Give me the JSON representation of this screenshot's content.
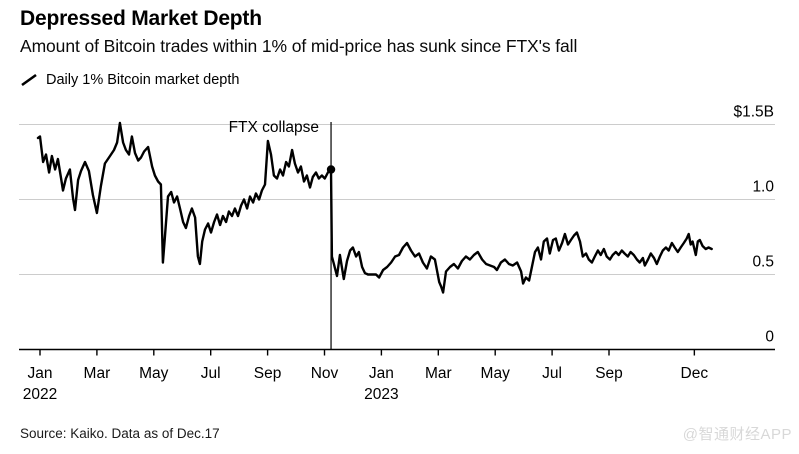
{
  "header": {
    "title": "Depressed Market Depth",
    "subtitle": "Amount of Bitcoin trades within 1% of mid-price has sunk since FTX's fall"
  },
  "legend": {
    "label": "Daily 1% Bitcoin market depth",
    "line_color": "#000000"
  },
  "chart_data": {
    "type": "line",
    "title": "Depressed Market Depth",
    "subtitle": "Amount of Bitcoin trades within 1% of mid-price has sunk since FTX's fall",
    "unit": "USD billions",
    "ylim": [
      0,
      1.5
    ],
    "grid": "horizontal",
    "legend_position": "top-left",
    "colors": {
      "line": "#000000",
      "grid": "#cccccc",
      "axis": "#000000",
      "annotation": "#000000"
    },
    "y_ticks": [
      {
        "label": "$1.5B",
        "value": 1.5
      },
      {
        "label": "1.0",
        "value": 1.0
      },
      {
        "label": "0.5",
        "value": 0.5
      },
      {
        "label": "0",
        "value": 0.0
      }
    ],
    "x_ticks": [
      {
        "label": "Jan",
        "sub": "2022",
        "month": 0
      },
      {
        "label": "Mar",
        "sub": "",
        "month": 2
      },
      {
        "label": "May",
        "sub": "",
        "month": 4
      },
      {
        "label": "Jul",
        "sub": "",
        "month": 6
      },
      {
        "label": "Sep",
        "sub": "",
        "month": 8
      },
      {
        "label": "Nov",
        "sub": "",
        "month": 10
      },
      {
        "label": "Jan",
        "sub": "2023",
        "month": 12
      },
      {
        "label": "Mar",
        "sub": "",
        "month": 14
      },
      {
        "label": "May",
        "sub": "",
        "month": 16
      },
      {
        "label": "Jul",
        "sub": "",
        "month": 18
      },
      {
        "label": "Sep",
        "sub": "",
        "month": 20
      },
      {
        "label": "Dec",
        "sub": "",
        "month": 23
      }
    ],
    "annotation": {
      "text": "FTX collapse",
      "month": 10.23,
      "value_at_line": 1.2
    },
    "marker": {
      "month": 10.23,
      "value": 1.2
    },
    "series": [
      {
        "name": "Daily 1% Bitcoin market depth",
        "color": "#000000",
        "x_unit": "months since Jan 2022",
        "points": [
          [
            -0.07,
            1.41
          ],
          [
            0.0,
            1.42
          ],
          [
            0.11,
            1.25
          ],
          [
            0.21,
            1.3
          ],
          [
            0.32,
            1.18
          ],
          [
            0.42,
            1.29
          ],
          [
            0.53,
            1.2
          ],
          [
            0.63,
            1.27
          ],
          [
            0.74,
            1.14
          ],
          [
            0.81,
            1.06
          ],
          [
            0.91,
            1.14
          ],
          [
            1.05,
            1.2
          ],
          [
            1.16,
            1.01
          ],
          [
            1.23,
            0.93
          ],
          [
            1.34,
            1.13
          ],
          [
            1.44,
            1.19
          ],
          [
            1.58,
            1.25
          ],
          [
            1.72,
            1.19
          ],
          [
            1.86,
            1.03
          ],
          [
            2.0,
            0.91
          ],
          [
            2.14,
            1.09
          ],
          [
            2.28,
            1.24
          ],
          [
            2.46,
            1.29
          ],
          [
            2.6,
            1.33
          ],
          [
            2.71,
            1.38
          ],
          [
            2.81,
            1.51
          ],
          [
            2.92,
            1.38
          ],
          [
            3.02,
            1.33
          ],
          [
            3.13,
            1.3
          ],
          [
            3.23,
            1.42
          ],
          [
            3.34,
            1.31
          ],
          [
            3.45,
            1.26
          ],
          [
            3.55,
            1.28
          ],
          [
            3.66,
            1.32
          ],
          [
            3.8,
            1.35
          ],
          [
            3.94,
            1.22
          ],
          [
            4.04,
            1.16
          ],
          [
            4.15,
            1.12
          ],
          [
            4.25,
            1.1
          ],
          [
            4.32,
            0.58
          ],
          [
            4.39,
            0.75
          ],
          [
            4.5,
            1.02
          ],
          [
            4.61,
            1.05
          ],
          [
            4.71,
            0.98
          ],
          [
            4.82,
            1.02
          ],
          [
            4.92,
            0.94
          ],
          [
            5.03,
            0.85
          ],
          [
            5.13,
            0.81
          ],
          [
            5.24,
            0.89
          ],
          [
            5.34,
            0.94
          ],
          [
            5.45,
            0.88
          ],
          [
            5.55,
            0.62
          ],
          [
            5.62,
            0.57
          ],
          [
            5.7,
            0.72
          ],
          [
            5.8,
            0.8
          ],
          [
            5.91,
            0.84
          ],
          [
            6.01,
            0.78
          ],
          [
            6.12,
            0.85
          ],
          [
            6.22,
            0.9
          ],
          [
            6.33,
            0.83
          ],
          [
            6.43,
            0.89
          ],
          [
            6.54,
            0.85
          ],
          [
            6.64,
            0.92
          ],
          [
            6.75,
            0.89
          ],
          [
            6.85,
            0.94
          ],
          [
            6.96,
            0.89
          ],
          [
            7.07,
            0.96
          ],
          [
            7.17,
            1.0
          ],
          [
            7.28,
            0.94
          ],
          [
            7.38,
            1.02
          ],
          [
            7.49,
            0.98
          ],
          [
            7.59,
            1.04
          ],
          [
            7.7,
            1.0
          ],
          [
            7.8,
            1.06
          ],
          [
            7.91,
            1.1
          ],
          [
            8.01,
            1.39
          ],
          [
            8.12,
            1.3
          ],
          [
            8.22,
            1.16
          ],
          [
            8.33,
            1.14
          ],
          [
            8.44,
            1.2
          ],
          [
            8.54,
            1.16
          ],
          [
            8.65,
            1.25
          ],
          [
            8.75,
            1.22
          ],
          [
            8.86,
            1.33
          ],
          [
            8.96,
            1.24
          ],
          [
            9.07,
            1.18
          ],
          [
            9.17,
            1.22
          ],
          [
            9.28,
            1.12
          ],
          [
            9.38,
            1.16
          ],
          [
            9.49,
            1.08
          ],
          [
            9.59,
            1.15
          ],
          [
            9.7,
            1.18
          ],
          [
            9.8,
            1.14
          ],
          [
            9.91,
            1.16
          ],
          [
            10.01,
            1.14
          ],
          [
            10.12,
            1.18
          ],
          [
            10.23,
            1.2
          ],
          [
            10.26,
            0.62
          ],
          [
            10.33,
            0.57
          ],
          [
            10.44,
            0.49
          ],
          [
            10.54,
            0.63
          ],
          [
            10.68,
            0.47
          ],
          [
            10.79,
            0.59
          ],
          [
            10.9,
            0.66
          ],
          [
            11.0,
            0.68
          ],
          [
            11.11,
            0.62
          ],
          [
            11.21,
            0.65
          ],
          [
            11.32,
            0.55
          ],
          [
            11.42,
            0.51
          ],
          [
            11.53,
            0.5
          ],
          [
            11.67,
            0.5
          ],
          [
            11.81,
            0.5
          ],
          [
            11.92,
            0.48
          ],
          [
            12.06,
            0.53
          ],
          [
            12.2,
            0.55
          ],
          [
            12.34,
            0.58
          ],
          [
            12.48,
            0.62
          ],
          [
            12.62,
            0.63
          ],
          [
            12.76,
            0.68
          ],
          [
            12.9,
            0.71
          ],
          [
            13.04,
            0.66
          ],
          [
            13.18,
            0.62
          ],
          [
            13.32,
            0.64
          ],
          [
            13.46,
            0.58
          ],
          [
            13.6,
            0.54
          ],
          [
            13.74,
            0.62
          ],
          [
            13.88,
            0.6
          ],
          [
            14.03,
            0.45
          ],
          [
            14.1,
            0.42
          ],
          [
            14.17,
            0.38
          ],
          [
            14.27,
            0.52
          ],
          [
            14.41,
            0.55
          ],
          [
            14.55,
            0.57
          ],
          [
            14.69,
            0.54
          ],
          [
            14.83,
            0.59
          ],
          [
            14.97,
            0.62
          ],
          [
            15.11,
            0.6
          ],
          [
            15.25,
            0.63
          ],
          [
            15.39,
            0.65
          ],
          [
            15.54,
            0.6
          ],
          [
            15.68,
            0.57
          ],
          [
            15.82,
            0.56
          ],
          [
            15.96,
            0.55
          ],
          [
            16.06,
            0.53
          ],
          [
            16.2,
            0.58
          ],
          [
            16.34,
            0.6
          ],
          [
            16.48,
            0.57
          ],
          [
            16.62,
            0.56
          ],
          [
            16.77,
            0.58
          ],
          [
            16.91,
            0.52
          ],
          [
            16.98,
            0.44
          ],
          [
            17.08,
            0.48
          ],
          [
            17.19,
            0.46
          ],
          [
            17.29,
            0.55
          ],
          [
            17.4,
            0.65
          ],
          [
            17.5,
            0.68
          ],
          [
            17.61,
            0.6
          ],
          [
            17.71,
            0.72
          ],
          [
            17.82,
            0.74
          ],
          [
            17.92,
            0.64
          ],
          [
            18.03,
            0.73
          ],
          [
            18.13,
            0.74
          ],
          [
            18.24,
            0.66
          ],
          [
            18.35,
            0.71
          ],
          [
            18.45,
            0.77
          ],
          [
            18.56,
            0.7
          ],
          [
            18.66,
            0.73
          ],
          [
            18.77,
            0.76
          ],
          [
            18.87,
            0.78
          ],
          [
            18.98,
            0.72
          ],
          [
            19.08,
            0.62
          ],
          [
            19.19,
            0.64
          ],
          [
            19.29,
            0.6
          ],
          [
            19.4,
            0.58
          ],
          [
            19.5,
            0.62
          ],
          [
            19.61,
            0.66
          ],
          [
            19.71,
            0.63
          ],
          [
            19.82,
            0.67
          ],
          [
            19.92,
            0.62
          ],
          [
            20.03,
            0.6
          ],
          [
            20.13,
            0.63
          ],
          [
            20.24,
            0.65
          ],
          [
            20.34,
            0.63
          ],
          [
            20.45,
            0.66
          ],
          [
            20.55,
            0.64
          ],
          [
            20.66,
            0.62
          ],
          [
            20.76,
            0.65
          ],
          [
            20.87,
            0.63
          ],
          [
            20.98,
            0.6
          ],
          [
            21.08,
            0.58
          ],
          [
            21.19,
            0.61
          ],
          [
            21.26,
            0.56
          ],
          [
            21.37,
            0.6
          ],
          [
            21.47,
            0.64
          ],
          [
            21.58,
            0.61
          ],
          [
            21.68,
            0.57
          ],
          [
            21.79,
            0.62
          ],
          [
            21.89,
            0.66
          ],
          [
            22.0,
            0.68
          ],
          [
            22.1,
            0.66
          ],
          [
            22.21,
            0.71
          ],
          [
            22.31,
            0.68
          ],
          [
            22.42,
            0.65
          ],
          [
            22.52,
            0.68
          ],
          [
            22.63,
            0.71
          ],
          [
            22.73,
            0.74
          ],
          [
            22.8,
            0.77
          ],
          [
            22.87,
            0.7
          ],
          [
            22.94,
            0.72
          ],
          [
            23.05,
            0.63
          ],
          [
            23.12,
            0.72
          ],
          [
            23.19,
            0.73
          ],
          [
            23.29,
            0.69
          ],
          [
            23.4,
            0.67
          ],
          [
            23.5,
            0.68
          ],
          [
            23.61,
            0.67
          ]
        ]
      }
    ]
  },
  "footer": {
    "source": "Source: Kaiko. Data as of Dec.17",
    "watermark": "@智通财经APP"
  }
}
